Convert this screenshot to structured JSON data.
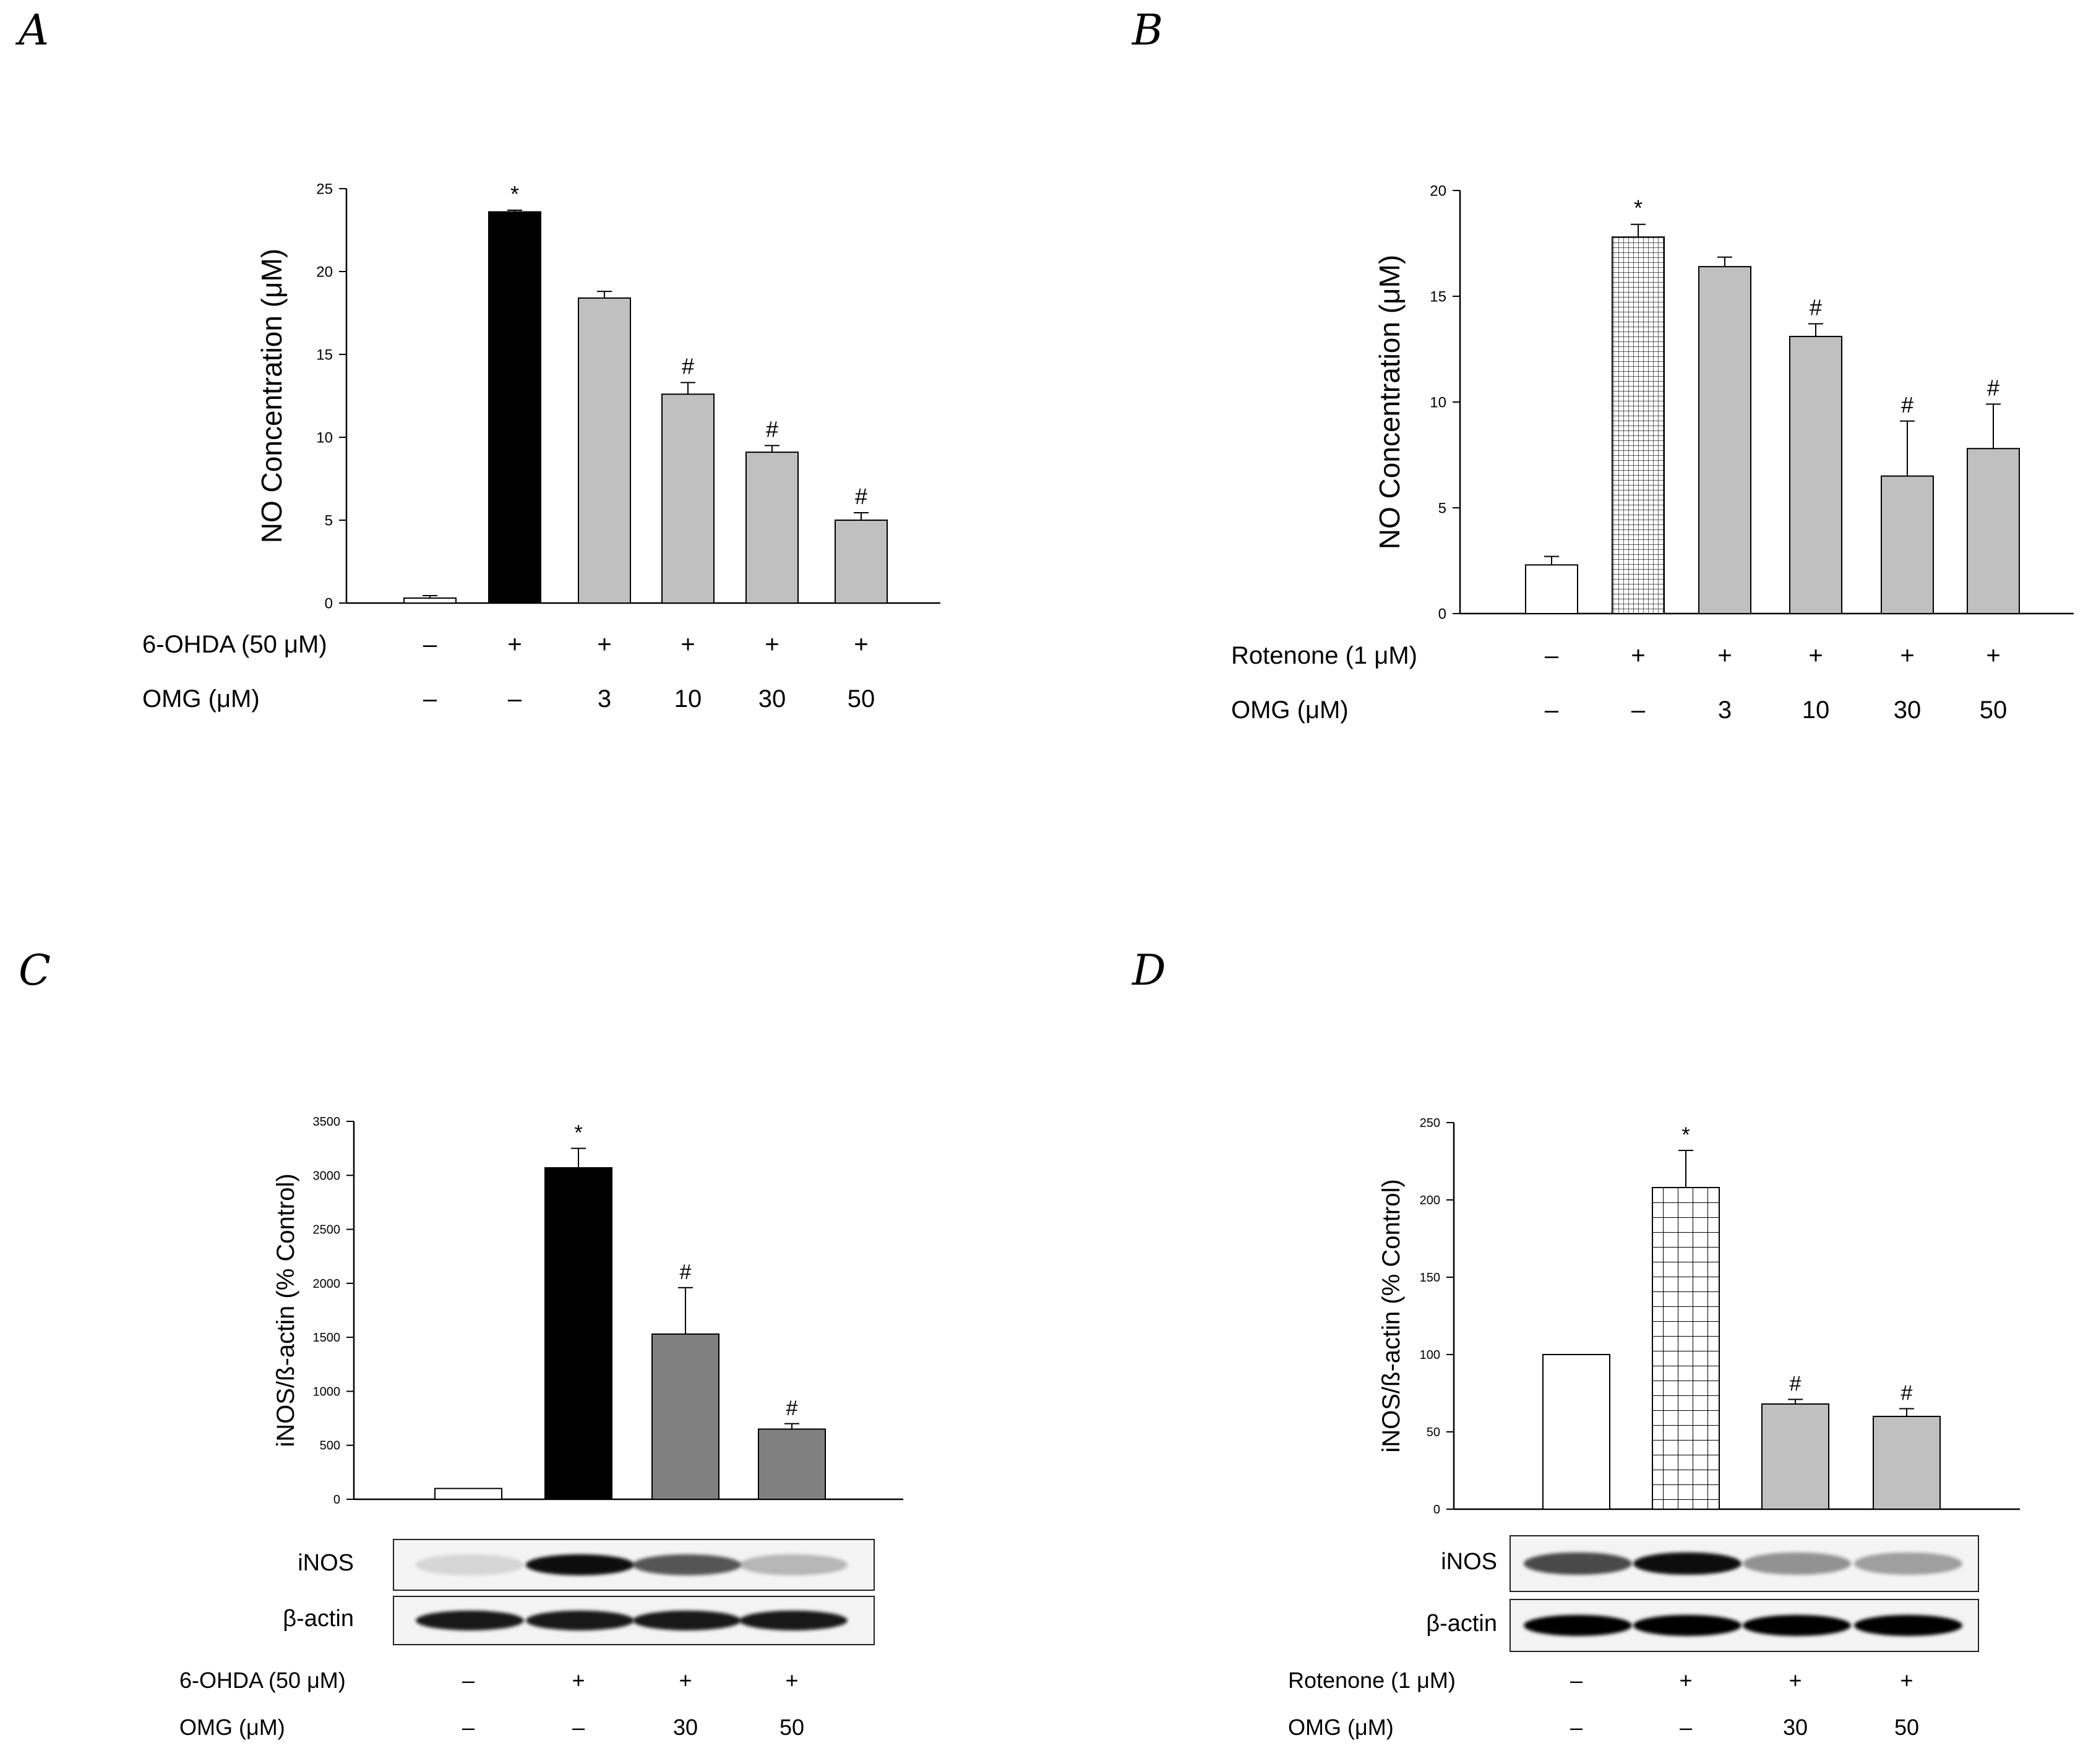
{
  "panels": [
    "A",
    "B",
    "C",
    "D"
  ],
  "chart_data": [
    {
      "id": "A",
      "type": "bar",
      "ylabel": "NO Concentration (μM)",
      "ylim": [
        0,
        25
      ],
      "yticks": [
        0,
        5,
        10,
        15,
        20,
        25
      ],
      "values": [
        0.3,
        23.6,
        18.4,
        12.6,
        9.1,
        5.0
      ],
      "errors": [
        0.15,
        0.1,
        0.4,
        0.7,
        0.4,
        0.45
      ],
      "markers": [
        "",
        "*",
        "",
        "#",
        "#",
        "#"
      ],
      "fills": [
        "white",
        "black",
        "gray",
        "gray",
        "gray",
        "gray"
      ],
      "treatment_label": "6-OHDA (50 μM)",
      "treatment": [
        "–",
        "+",
        "+",
        "+",
        "+",
        "+"
      ],
      "omg_label": "OMG (μM)",
      "omg": [
        "–",
        "–",
        "3",
        "10",
        "30",
        "50"
      ]
    },
    {
      "id": "B",
      "type": "bar",
      "ylabel": "NO Concentration (μM)",
      "ylim": [
        0,
        20
      ],
      "yticks": [
        0,
        5,
        10,
        15,
        20
      ],
      "values": [
        2.3,
        17.8,
        16.4,
        13.1,
        6.5,
        7.8
      ],
      "errors": [
        0.4,
        0.6,
        0.45,
        0.6,
        2.6,
        2.1
      ],
      "markers": [
        "",
        "*",
        "",
        "#",
        "#",
        "#"
      ],
      "fills": [
        "white",
        "fine-grid",
        "gray",
        "gray",
        "gray",
        "gray"
      ],
      "treatment_label": "Rotenone (1 μM)",
      "treatment": [
        "–",
        "+",
        "+",
        "+",
        "+",
        "+"
      ],
      "omg_label": "OMG (μM)",
      "omg": [
        "–",
        "–",
        "3",
        "10",
        "30",
        "50"
      ]
    },
    {
      "id": "C",
      "type": "bar",
      "ylabel": "iNOS/ß-actin (% Control)",
      "ylim": [
        0,
        3500
      ],
      "yticks": [
        0,
        500,
        1000,
        1500,
        2000,
        2500,
        3000,
        3500
      ],
      "values": [
        100,
        3070,
        1530,
        650
      ],
      "errors": [
        0,
        180,
        430,
        50
      ],
      "markers": [
        "",
        "*",
        "#",
        "#"
      ],
      "fills": [
        "white",
        "black",
        "dark-gray",
        "dark-gray"
      ],
      "blot_labels": [
        "iNOS",
        "β-actin"
      ],
      "inos_intensity": [
        0.12,
        0.95,
        0.65,
        0.25
      ],
      "actin_intensity": [
        0.9,
        0.9,
        0.9,
        0.9
      ],
      "treatment_label": "6-OHDA (50 μM)",
      "treatment": [
        "–",
        "+",
        "+",
        "+"
      ],
      "omg_label": "OMG (μM)",
      "omg": [
        "–",
        "–",
        "30",
        "50"
      ]
    },
    {
      "id": "D",
      "type": "bar",
      "ylabel": "iNOS/ß-actin (% Control)",
      "ylim": [
        0,
        250
      ],
      "yticks": [
        0,
        50,
        100,
        150,
        200,
        250
      ],
      "values": [
        100,
        208,
        68,
        60
      ],
      "errors": [
        0,
        24,
        3,
        5
      ],
      "markers": [
        "",
        "*",
        "#",
        "#"
      ],
      "fills": [
        "white",
        "coarse-grid",
        "gray",
        "gray"
      ],
      "blot_labels": [
        "iNOS",
        "β-actin"
      ],
      "inos_intensity": [
        0.7,
        0.95,
        0.4,
        0.35
      ],
      "actin_intensity": [
        1.0,
        1.0,
        1.0,
        1.0
      ],
      "treatment_label": "Rotenone (1 μM)",
      "treatment": [
        "–",
        "+",
        "+",
        "+"
      ],
      "omg_label": "OMG (μM)",
      "omg": [
        "–",
        "–",
        "30",
        "50"
      ]
    }
  ],
  "colors": {
    "gray_fill": "#c0c0c0",
    "dark_gray_fill": "#808080",
    "black_fill": "#000000",
    "axis": "#000000"
  }
}
